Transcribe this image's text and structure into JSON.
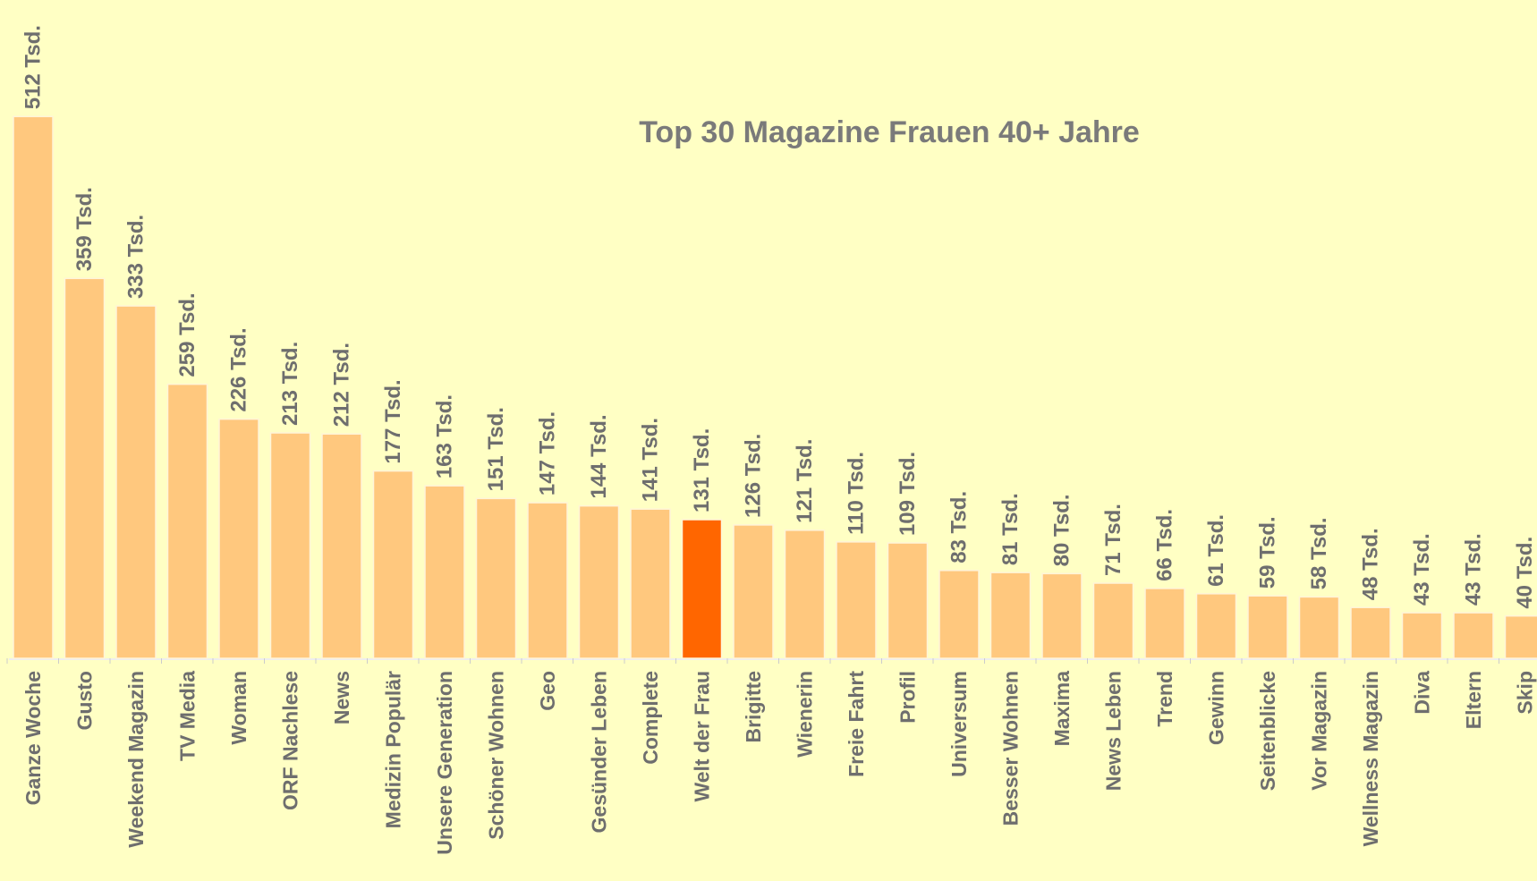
{
  "chart_data": {
    "type": "bar",
    "title": "Top 30 Magazine Frauen 40+ Jahre",
    "categories": [
      "Ganze Woche",
      "Gusto",
      "Weekend Magazin",
      "TV Media",
      "Woman",
      "ORF Nachlese",
      "News",
      "Medizin Populär",
      "Unsere Generation",
      "Schöner Wohnen",
      "Geo",
      "Gesünder Leben",
      "Complete",
      "Welt der Frau",
      "Brigitte",
      "Wienerin",
      "Freie Fahrt",
      "Profil",
      "Universum",
      "Besser Wohnen",
      "Maxima",
      "News Leben",
      "Trend",
      "Gewinn",
      "Seitenblicke",
      "Vor Magazin",
      "Wellness Magazin",
      "Diva",
      "Eltern",
      "Skip"
    ],
    "values": [
      512,
      359,
      333,
      259,
      226,
      213,
      212,
      177,
      163,
      151,
      147,
      144,
      141,
      131,
      126,
      121,
      110,
      109,
      83,
      81,
      80,
      71,
      66,
      61,
      59,
      58,
      48,
      43,
      43,
      40
    ],
    "value_labels": [
      "512 Tsd.",
      "359 Tsd.",
      "333 Tsd.",
      "259 Tsd.",
      "226 Tsd.",
      "213 Tsd.",
      "212 Tsd.",
      "177 Tsd.",
      "163 Tsd.",
      "151 Tsd.",
      "147 Tsd.",
      "144 Tsd.",
      "141 Tsd.",
      "131 Tsd.",
      "126 Tsd.",
      "121 Tsd.",
      "110 Tsd.",
      "109 Tsd.",
      "83 Tsd.",
      "81 Tsd.",
      "80 Tsd.",
      "71 Tsd.",
      "66 Tsd.",
      "61 Tsd.",
      "59 Tsd.",
      "58 Tsd.",
      "48 Tsd.",
      "43 Tsd.",
      "43 Tsd.",
      "40 Tsd."
    ],
    "colors": [
      "#ffc87e",
      "#ffc87e",
      "#ffc87e",
      "#ffc87e",
      "#ffc87e",
      "#ffc87e",
      "#ffc87e",
      "#ffc87e",
      "#ffc87e",
      "#ffc87e",
      "#ffc87e",
      "#ffc87e",
      "#ffc87e",
      "#ff6600",
      "#ffc87e",
      "#ffc87e",
      "#ffc87e",
      "#ffc87e",
      "#ffc87e",
      "#ffc87e",
      "#ffc87e",
      "#ffc87e",
      "#ffc87e",
      "#ffc87e",
      "#ffc87e",
      "#ffc87e",
      "#ffc87e",
      "#ffc87e",
      "#ffc87e",
      "#ffc87e"
    ]
  }
}
